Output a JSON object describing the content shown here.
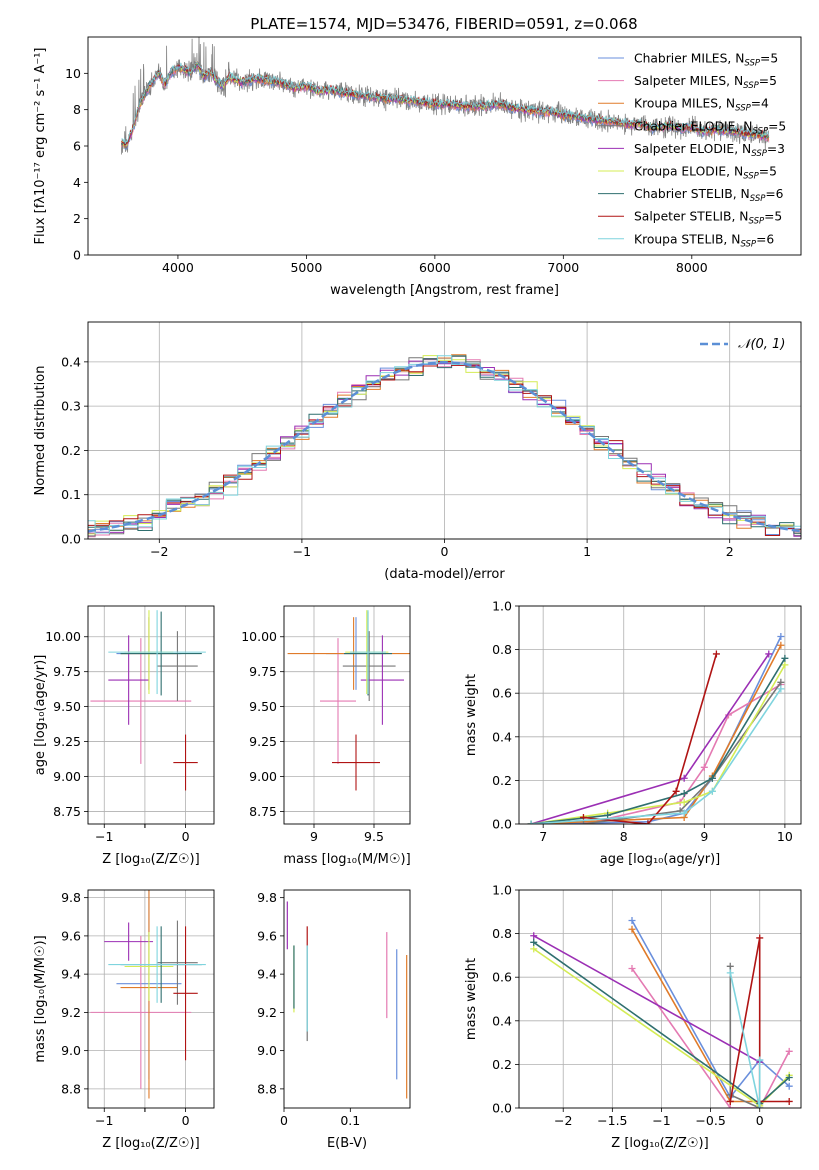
{
  "figure": {
    "title": "PLATE=1574, MJD=53476, FIBERID=0591, z=0.068"
  },
  "colors": {
    "Chabrier MILES": "#6a8fdc",
    "Salpeter MILES": "#e47ab2",
    "Kroupa MILES": "#e07b2a",
    "Chabrier ELODIE": "#777777",
    "Salpeter ELODIE": "#9b2fb4",
    "Kroupa ELODIE": "#d4ec55",
    "Chabrier STELIB": "#2f6f6f",
    "Salpeter STELIB": "#b01414",
    "Kroupa STELIB": "#7fd4de",
    "normal_curve": "#5b8fd6"
  },
  "chart_data": [
    {
      "id": "spectrum",
      "type": "line",
      "title": "PLATE=1574, MJD=53476, FIBERID=0591, z=0.068",
      "xlabel": "wavelength [Angstrom, rest frame]",
      "ylabel": "Flux [fλ10⁻¹⁷ erg cm⁻² s⁻¹ A⁻¹]",
      "xlim": [
        3300,
        8850
      ],
      "ylim": [
        0,
        12
      ],
      "xticks": [
        4000,
        5000,
        6000,
        7000,
        8000
      ],
      "yticks": [
        0,
        2,
        4,
        6,
        8,
        10
      ],
      "grid": false,
      "legend": "top-right",
      "data_series": {
        "name": "",
        "x": [
          3560,
          3600,
          3650,
          3700,
          3750,
          3800,
          3850,
          3900,
          3950,
          4000,
          4050,
          4100,
          4150,
          4200,
          4250,
          4300,
          4350,
          4400,
          4500,
          4600,
          4700,
          4800,
          4900,
          5000,
          5100,
          5200,
          5300,
          5400,
          5500,
          5600,
          5700,
          5800,
          5900,
          6000,
          6100,
          6200,
          6300,
          6400,
          6500,
          6600,
          6700,
          6800,
          6900,
          7000,
          7100,
          7200,
          7300,
          7400,
          7500,
          7600,
          7700,
          7800,
          7900,
          8000,
          8100,
          8200,
          8300,
          8400,
          8500,
          8600
        ],
        "y": [
          6.2,
          6.0,
          7.0,
          8.2,
          9.0,
          9.5,
          10.0,
          9.4,
          10.1,
          10.3,
          10.2,
          10.0,
          10.5,
          9.8,
          10.1,
          9.6,
          9.3,
          9.8,
          9.5,
          9.7,
          9.6,
          9.5,
          9.2,
          9.3,
          9.0,
          9.1,
          8.9,
          8.8,
          8.7,
          8.6,
          8.6,
          8.5,
          8.4,
          8.3,
          8.3,
          8.2,
          8.2,
          8.2,
          8.3,
          8.1,
          8.0,
          7.9,
          7.9,
          7.7,
          7.6,
          7.5,
          7.4,
          7.3,
          7.2,
          7.2,
          7.0,
          7.1,
          7.0,
          7.0,
          6.8,
          6.9,
          6.8,
          6.7,
          6.6,
          6.5
        ]
      },
      "series": [
        {
          "name": "Chabrier MILES, N_SSP=5"
        },
        {
          "name": "Salpeter MILES, N_SSP=5"
        },
        {
          "name": "Kroupa MILES, N_SSP=4"
        },
        {
          "name": "Chabrier ELODIE, N_SSP=5"
        },
        {
          "name": "Salpeter ELODIE, N_SSP=3"
        },
        {
          "name": "Kroupa ELODIE, N_SSP=5"
        },
        {
          "name": "Chabrier STELIB, N_SSP=6"
        },
        {
          "name": "Salpeter STELIB, N_SSP=5"
        },
        {
          "name": "Kroupa STELIB, N_SSP=6"
        }
      ],
      "legend_labels": [
        {
          "main": "Chabrier MILES, N",
          "sub": "SSP",
          "tail": "=5"
        },
        {
          "main": "Salpeter MILES, N",
          "sub": "SSP",
          "tail": "=5"
        },
        {
          "main": "Kroupa MILES, N",
          "sub": "SSP",
          "tail": "=4"
        },
        {
          "main": "Chabrier ELODIE, N",
          "sub": "SSP",
          "tail": "=5"
        },
        {
          "main": "Salpeter ELODIE, N",
          "sub": "SSP",
          "tail": "=3"
        },
        {
          "main": "Kroupa ELODIE, N",
          "sub": "SSP",
          "tail": "=5"
        },
        {
          "main": "Chabrier STELIB, N",
          "sub": "SSP",
          "tail": "=6"
        },
        {
          "main": "Salpeter STELIB, N",
          "sub": "SSP",
          "tail": "=5"
        },
        {
          "main": "Kroupa STELIB, N",
          "sub": "SSP",
          "tail": "=6"
        }
      ]
    },
    {
      "id": "residuals",
      "type": "line",
      "xlabel": "(data-model)/error",
      "ylabel": "Normed distribution",
      "xlim": [
        -2.5,
        2.5
      ],
      "ylim": [
        0,
        0.49
      ],
      "xticks": [
        -2,
        -1,
        0,
        1,
        2
      ],
      "yticks": [
        0.0,
        0.1,
        0.2,
        0.3,
        0.4
      ],
      "grid": true,
      "legend": "top-right",
      "legend_label": "𝒩(0, 1)",
      "normal_curve": {
        "mu": 0,
        "sigma": 1
      }
    },
    {
      "id": "age_vs_Z",
      "type": "scatter",
      "xlabel": "Z [log₁₀(Z/Z☉)]",
      "ylabel": "age  [log₁₀(age/yr)]",
      "xlim": [
        -1.2,
        0.35
      ],
      "ylim": [
        8.66,
        10.22
      ],
      "xticks": [
        -1,
        -0.5,
        0
      ],
      "xticklabels": [
        "−1",
        "",
        "0"
      ],
      "yticks": [
        8.75,
        9.0,
        9.25,
        9.5,
        9.75,
        10.0
      ],
      "grid": true,
      "points": [
        {
          "series": "Chabrier MILES",
          "x": -0.45,
          "y": 9.88,
          "xerr": 0.4,
          "yerr": 0.26
        },
        {
          "series": "Salpeter MILES",
          "x": -0.55,
          "y": 9.54,
          "xerr": 0.62,
          "yerr": 0.45
        },
        {
          "series": "Kroupa MILES",
          "x": -0.45,
          "y": 9.88,
          "xerr": 0.35,
          "yerr": 0.26
        },
        {
          "series": "Chabrier ELODIE",
          "x": -0.1,
          "y": 9.79,
          "xerr": 0.25,
          "yerr": 0.25
        },
        {
          "series": "Salpeter ELODIE",
          "x": -0.7,
          "y": 9.69,
          "xerr": 0.25,
          "yerr": 0.32
        },
        {
          "series": "Kroupa ELODIE",
          "x": -0.45,
          "y": 9.89,
          "xerr": 0.3,
          "yerr": 0.3
        },
        {
          "series": "Chabrier STELIB",
          "x": -0.3,
          "y": 9.88,
          "xerr": 0.5,
          "yerr": 0.3
        },
        {
          "series": "Salpeter STELIB",
          "x": 0.0,
          "y": 9.1,
          "xerr": 0.15,
          "yerr": 0.2
        },
        {
          "series": "Kroupa STELIB",
          "x": -0.35,
          "y": 9.89,
          "xerr": 0.6,
          "yerr": 0.3
        }
      ]
    },
    {
      "id": "age_vs_mass",
      "type": "scatter",
      "xlabel": "mass [log₁₀(M/M☉)]",
      "ylabel": "",
      "xlim": [
        8.75,
        9.8
      ],
      "ylim": [
        8.66,
        10.22
      ],
      "xticks": [
        9.0,
        9.5
      ],
      "yticks": [
        8.75,
        9.0,
        9.25,
        9.5,
        9.75,
        10.0
      ],
      "grid": true,
      "points": [
        {
          "series": "Chabrier MILES",
          "x": 9.35,
          "y": 9.88,
          "xerr": 0.25,
          "yerr": 0.26
        },
        {
          "series": "Salpeter MILES",
          "x": 9.2,
          "y": 9.54,
          "xerr": 0.15,
          "yerr": 0.45
        },
        {
          "series": "Kroupa MILES",
          "x": 9.33,
          "y": 9.88,
          "xerr": 0.55,
          "yerr": 0.26
        },
        {
          "series": "Chabrier ELODIE",
          "x": 9.46,
          "y": 9.79,
          "xerr": 0.22,
          "yerr": 0.25
        },
        {
          "series": "Salpeter ELODIE",
          "x": 9.57,
          "y": 9.69,
          "xerr": 0.18,
          "yerr": 0.32
        },
        {
          "series": "Kroupa ELODIE",
          "x": 9.44,
          "y": 9.89,
          "xerr": 0.18,
          "yerr": 0.3
        },
        {
          "series": "Chabrier STELIB",
          "x": 9.45,
          "y": 9.88,
          "xerr": 0.2,
          "yerr": 0.3
        },
        {
          "series": "Salpeter STELIB",
          "x": 9.35,
          "y": 9.1,
          "xerr": 0.2,
          "yerr": 0.2
        },
        {
          "series": "Kroupa STELIB",
          "x": 9.45,
          "y": 9.89,
          "xerr": 0.15,
          "yerr": 0.3
        }
      ]
    },
    {
      "id": "weight_vs_age",
      "type": "line",
      "xlabel": "age  [log₁₀(age/yr)]",
      "ylabel": "mass weight",
      "xlim": [
        6.7,
        10.2
      ],
      "ylim": [
        0,
        1
      ],
      "xticks": [
        7,
        8,
        9,
        10
      ],
      "yticks": [
        0.0,
        0.2,
        0.4,
        0.6,
        0.8,
        1.0
      ],
      "grid": true,
      "series": [
        {
          "name": "Chabrier MILES",
          "x": [
            6.85,
            8.3,
            8.75,
            9.1,
            9.95
          ],
          "y": [
            0.0,
            0.01,
            0.05,
            0.21,
            0.86
          ]
        },
        {
          "name": "Salpeter MILES",
          "x": [
            7.5,
            8.7,
            9.0,
            9.3,
            9.95
          ],
          "y": [
            0.0,
            0.1,
            0.26,
            0.5,
            0.64
          ]
        },
        {
          "name": "Kroupa MILES",
          "x": [
            6.85,
            8.75,
            9.1,
            9.95
          ],
          "y": [
            0.0,
            0.03,
            0.22,
            0.82
          ]
        },
        {
          "name": "Chabrier ELODIE",
          "x": [
            7.5,
            8.7,
            9.1,
            9.95
          ],
          "y": [
            0.0,
            0.06,
            0.21,
            0.65
          ]
        },
        {
          "name": "Salpeter ELODIE",
          "x": [
            6.85,
            8.75,
            9.8
          ],
          "y": [
            0.0,
            0.21,
            0.78
          ]
        },
        {
          "name": "Kroupa ELODIE",
          "x": [
            6.85,
            7.8,
            8.75,
            9.1,
            10.0
          ],
          "y": [
            0.0,
            0.05,
            0.1,
            0.15,
            0.73
          ]
        },
        {
          "name": "Chabrier STELIB",
          "x": [
            6.85,
            7.8,
            8.75,
            9.1,
            10.0
          ],
          "y": [
            0.0,
            0.04,
            0.14,
            0.21,
            0.76
          ]
        },
        {
          "name": "Salpeter STELIB",
          "x": [
            7.5,
            8.3,
            8.65,
            9.15
          ],
          "y": [
            0.03,
            0.0,
            0.15,
            0.78
          ]
        },
        {
          "name": "Kroupa STELIB",
          "x": [
            6.85,
            8.75,
            9.1,
            9.95
          ],
          "y": [
            0.0,
            0.05,
            0.15,
            0.62
          ]
        }
      ]
    },
    {
      "id": "mass_vs_Z",
      "type": "scatter",
      "xlabel": "Z [log₁₀(Z/Z☉)]",
      "ylabel": "mass [log₁₀(M/M☉)]",
      "xlim": [
        -1.2,
        0.35
      ],
      "ylim": [
        8.7,
        9.84
      ],
      "xticks": [
        -1,
        -0.5,
        0
      ],
      "xticklabels": [
        "−1",
        "",
        "0"
      ],
      "yticks": [
        8.8,
        9.0,
        9.2,
        9.4,
        9.6,
        9.8
      ],
      "grid": true,
      "points": [
        {
          "series": "Chabrier MILES",
          "x": -0.45,
          "y": 9.35,
          "xerr": 0.4,
          "yerr": 0.5
        },
        {
          "series": "Salpeter MILES",
          "x": -0.55,
          "y": 9.2,
          "xerr": 0.62,
          "yerr": 0.4
        },
        {
          "series": "Kroupa MILES",
          "x": -0.45,
          "y": 9.33,
          "xerr": 0.35,
          "yerr": 0.58
        },
        {
          "series": "Chabrier ELODIE",
          "x": -0.1,
          "y": 9.46,
          "xerr": 0.25,
          "yerr": 0.22
        },
        {
          "series": "Salpeter ELODIE",
          "x": -0.7,
          "y": 9.57,
          "xerr": 0.3,
          "yerr": 0.1
        },
        {
          "series": "Kroupa ELODIE",
          "x": -0.45,
          "y": 9.44,
          "xerr": 0.3,
          "yerr": 0.18
        },
        {
          "series": "Chabrier STELIB",
          "x": -0.3,
          "y": 9.45,
          "xerr": 0.5,
          "yerr": 0.2
        },
        {
          "series": "Salpeter STELIB",
          "x": 0.0,
          "y": 9.3,
          "xerr": 0.15,
          "yerr": 0.35
        },
        {
          "series": "Kroupa STELIB",
          "x": -0.35,
          "y": 9.45,
          "xerr": 0.6,
          "yerr": 0.2
        }
      ]
    },
    {
      "id": "mass_vs_ebv",
      "type": "scatter",
      "xlabel": "E(B-V)",
      "ylabel": "",
      "xlim": [
        0,
        0.19
      ],
      "ylim": [
        8.7,
        9.84
      ],
      "xticks": [
        0.0,
        0.1
      ],
      "yticks": [
        8.8,
        9.0,
        9.2,
        9.4,
        9.6,
        9.8
      ],
      "grid": false,
      "bars": [
        {
          "series": "Chabrier MILES",
          "x": 0.17,
          "ymin": 8.85,
          "ymax": 9.53
        },
        {
          "series": "Salpeter MILES",
          "x": 0.155,
          "ymin": 9.17,
          "ymax": 9.62
        },
        {
          "series": "Kroupa MILES",
          "x": 0.185,
          "ymin": 8.75,
          "ymax": 9.5
        },
        {
          "series": "Chabrier ELODIE",
          "x": 0.035,
          "ymin": 9.05,
          "ymax": 9.55
        },
        {
          "series": "Salpeter ELODIE",
          "x": 0.005,
          "ymin": 9.53,
          "ymax": 9.78
        },
        {
          "series": "Kroupa ELODIE",
          "x": 0.015,
          "ymin": 9.2,
          "ymax": 9.55
        },
        {
          "series": "Chabrier STELIB",
          "x": 0.015,
          "ymin": 9.22,
          "ymax": 9.55
        },
        {
          "series": "Salpeter STELIB",
          "x": 0.035,
          "ymin": 9.55,
          "ymax": 9.65
        },
        {
          "series": "Kroupa STELIB",
          "x": 0.035,
          "ymin": 9.1,
          "ymax": 9.55
        }
      ]
    },
    {
      "id": "weight_vs_Z",
      "type": "line",
      "xlabel": "Z [log₁₀(Z/Z☉)]",
      "ylabel": "mass weight",
      "xlim": [
        -2.45,
        0.42
      ],
      "ylim": [
        0,
        1
      ],
      "xticks": [
        -2.0,
        -1.5,
        -1.0,
        -0.5,
        0.0
      ],
      "yticks": [
        0.0,
        0.2,
        0.4,
        0.6,
        0.8,
        1.0
      ],
      "grid": true,
      "series": [
        {
          "name": "Chabrier MILES",
          "x": [
            -1.3,
            -0.3,
            0.0,
            0.3
          ],
          "y": [
            0.86,
            0.05,
            0.22,
            0.1
          ]
        },
        {
          "name": "Salpeter MILES",
          "x": [
            -1.3,
            -0.3,
            0.0,
            0.3
          ],
          "y": [
            0.64,
            0.0,
            0.0,
            0.26
          ]
        },
        {
          "name": "Kroupa MILES",
          "x": [
            -1.3,
            -0.3,
            0.0
          ],
          "y": [
            0.82,
            0.03,
            0.03
          ]
        },
        {
          "name": "Chabrier ELODIE",
          "x": [
            -0.3,
            -0.3,
            0.0
          ],
          "y": [
            0.65,
            0.06,
            0.0
          ]
        },
        {
          "name": "Salpeter ELODIE",
          "x": [
            -2.3,
            0.0
          ],
          "y": [
            0.79,
            0.21
          ]
        },
        {
          "name": "Kroupa ELODIE",
          "x": [
            -2.3,
            0.0,
            0.3
          ],
          "y": [
            0.73,
            0.01,
            0.15
          ]
        },
        {
          "name": "Chabrier STELIB",
          "x": [
            -2.3,
            0.0,
            0.3
          ],
          "y": [
            0.76,
            0.02,
            0.14
          ]
        },
        {
          "name": "Salpeter STELIB",
          "x": [
            -0.3,
            0.0,
            0.0,
            0.3
          ],
          "y": [
            0.03,
            0.78,
            0.03,
            0.03
          ]
        },
        {
          "name": "Kroupa STELIB",
          "x": [
            -0.3,
            0.0,
            0.0
          ],
          "y": [
            0.62,
            0.0,
            0.22
          ]
        }
      ]
    }
  ]
}
